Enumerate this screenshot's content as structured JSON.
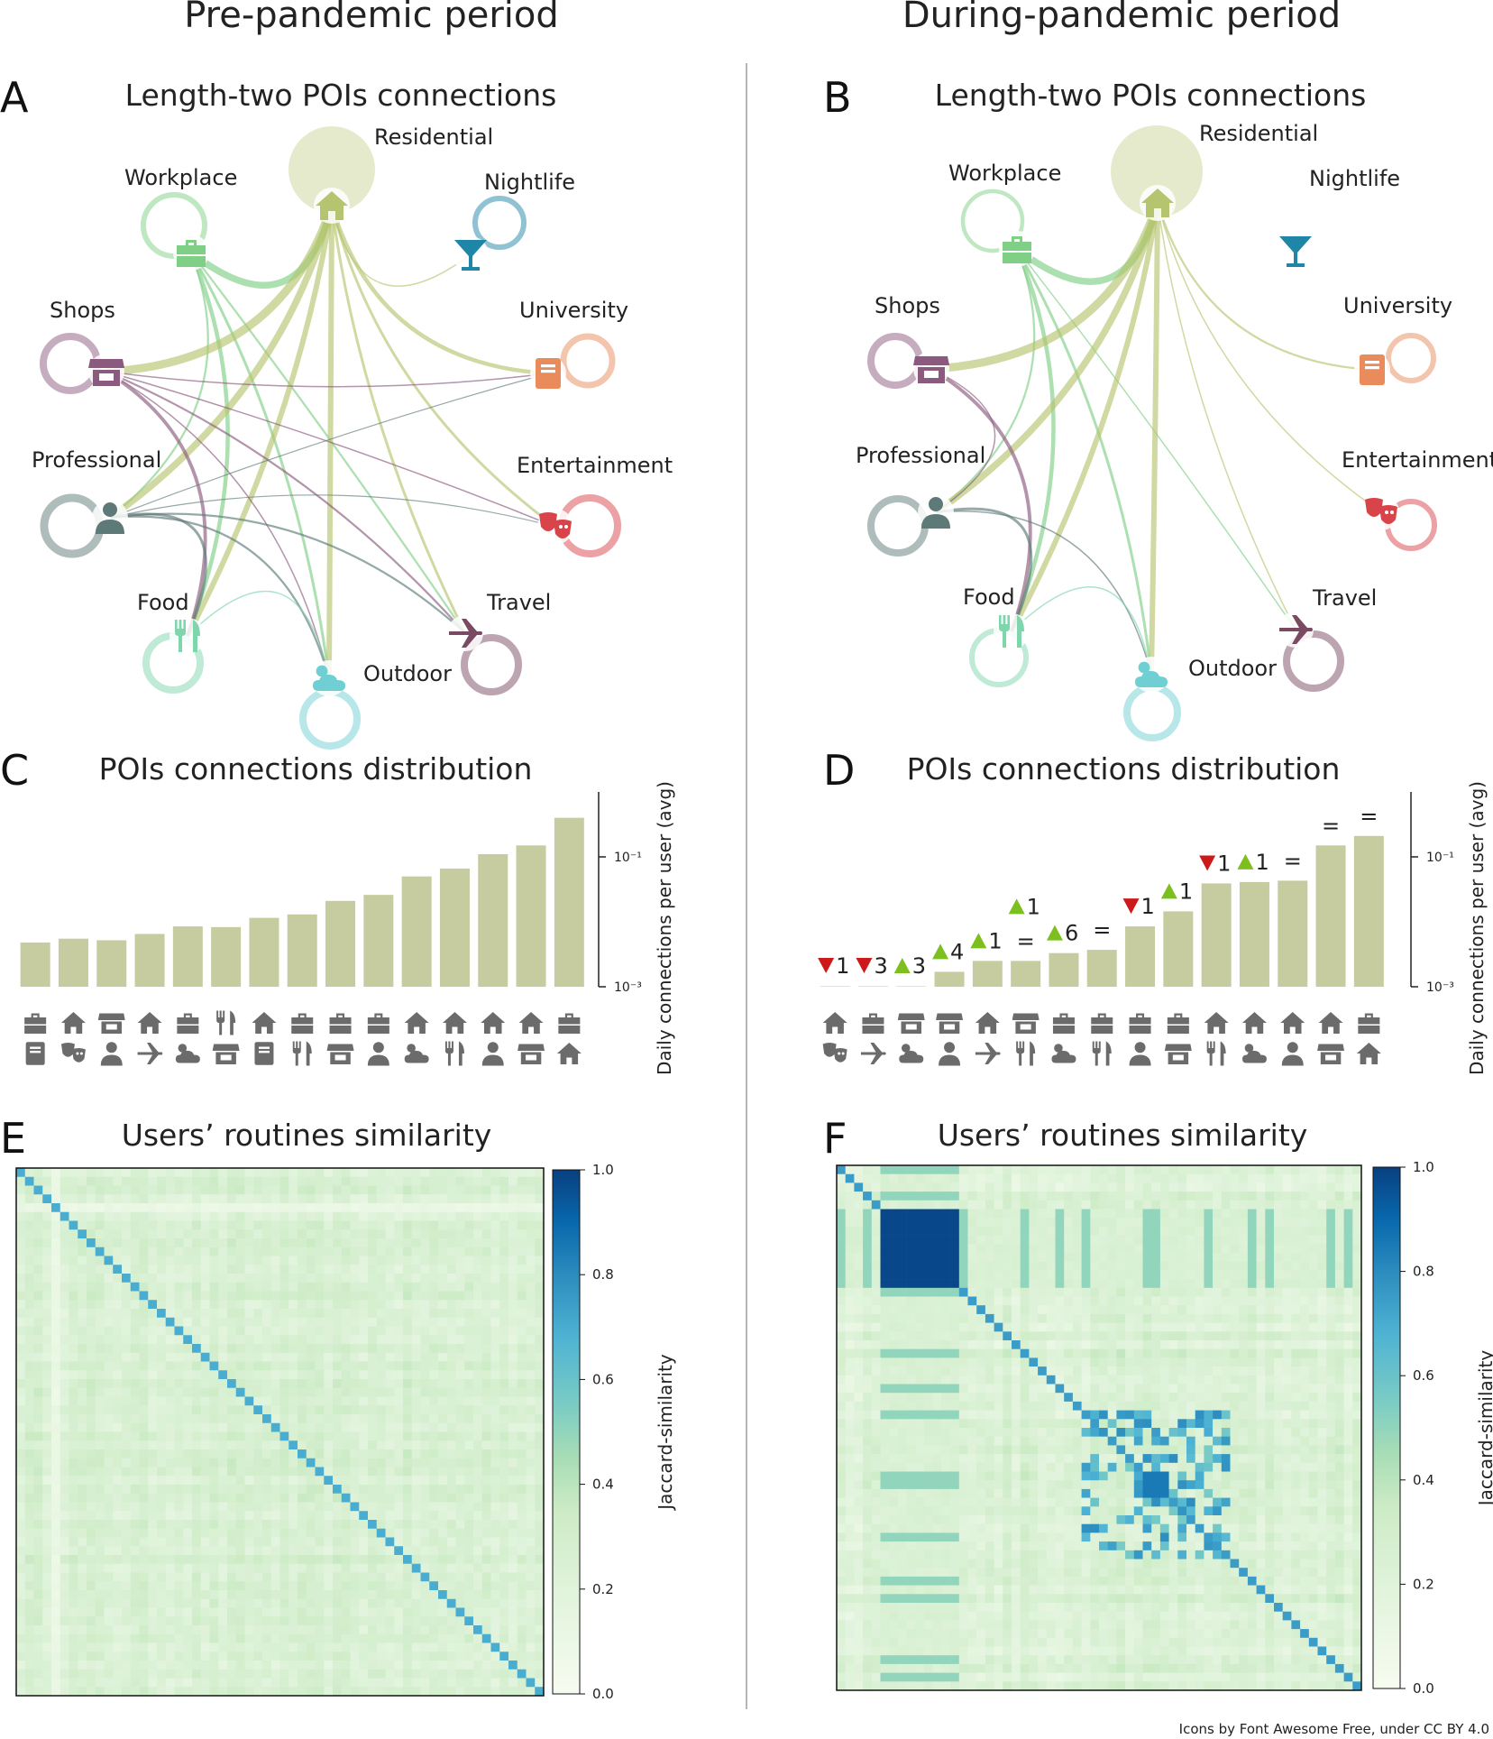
{
  "periods": {
    "pre": "Pre-pandemic period",
    "during": "During-pandemic period"
  },
  "panels": {
    "A": {
      "letter": "A",
      "title": "Length-two POIs connections"
    },
    "B": {
      "letter": "B",
      "title": "Length-two POIs connections"
    },
    "C": {
      "letter": "C",
      "title": "POIs connections distribution"
    },
    "D": {
      "letter": "D",
      "title": "POIs connections distribution"
    },
    "E": {
      "letter": "E",
      "title": "Users’ routines similarity"
    },
    "F": {
      "letter": "F",
      "title": "Users’ routines similarity"
    }
  },
  "poi_categories": [
    {
      "name": "Residential",
      "color": "#b5c46e",
      "icon": "home-icon"
    },
    {
      "name": "Nightlife",
      "color": "#1f86a8",
      "icon": "cocktail-icon"
    },
    {
      "name": "University",
      "color": "#ea8b5c",
      "icon": "book-icon"
    },
    {
      "name": "Entertainment",
      "color": "#d9434a",
      "icon": "theater-masks-icon"
    },
    {
      "name": "Travel",
      "color": "#7a4a63",
      "icon": "plane-icon"
    },
    {
      "name": "Outdoor",
      "color": "#6fcfd3",
      "icon": "cloud-sun-icon"
    },
    {
      "name": "Food",
      "color": "#7fd6ad",
      "icon": "utensils-icon"
    },
    {
      "name": "Professional",
      "color": "#5e7a78",
      "icon": "user-tie-icon"
    },
    {
      "name": "Shops",
      "color": "#8c5a7e",
      "icon": "store-icon"
    },
    {
      "name": "Workplace",
      "color": "#7fcf86",
      "icon": "briefcase-icon"
    }
  ],
  "icon_color": "#6b6b6b",
  "bar_color": "#c6cc9f",
  "up_color": "#7cbf1f",
  "down_color": "#cc1a1a",
  "chart_data": [
    {
      "panel": "A",
      "type": "network",
      "title": "Length-two POIs connections",
      "edges": [
        {
          "from": "Workplace",
          "to": "Residential",
          "weight": 5
        },
        {
          "from": "Workplace",
          "to": "Food",
          "weight": 3
        },
        {
          "from": "Workplace",
          "to": "Outdoor",
          "weight": 2
        },
        {
          "from": "Workplace",
          "to": "Travel",
          "weight": 1.5
        },
        {
          "from": "Workplace",
          "to": "Professional",
          "weight": 1.5
        },
        {
          "from": "Residential",
          "to": "Shops",
          "weight": 6
        },
        {
          "from": "Residential",
          "to": "Professional",
          "weight": 5
        },
        {
          "from": "Residential",
          "to": "Food",
          "weight": 4
        },
        {
          "from": "Residential",
          "to": "Outdoor",
          "weight": 4
        },
        {
          "from": "Residential",
          "to": "University",
          "weight": 3
        },
        {
          "from": "Residential",
          "to": "Entertainment",
          "weight": 2
        },
        {
          "from": "Residential",
          "to": "Travel",
          "weight": 2
        },
        {
          "from": "Residential",
          "to": "Nightlife",
          "weight": 1
        },
        {
          "from": "Shops",
          "to": "University",
          "weight": 1
        },
        {
          "from": "Shops",
          "to": "Entertainment",
          "weight": 1
        },
        {
          "from": "Shops",
          "to": "Travel",
          "weight": 1.5
        },
        {
          "from": "Shops",
          "to": "Outdoor",
          "weight": 1
        },
        {
          "from": "Shops",
          "to": "Food",
          "weight": 2.5
        },
        {
          "from": "Professional",
          "to": "University",
          "weight": 0.8
        },
        {
          "from": "Professional",
          "to": "Entertainment",
          "weight": 0.8
        },
        {
          "from": "Professional",
          "to": "Travel",
          "weight": 1.5
        },
        {
          "from": "Professional",
          "to": "Outdoor",
          "weight": 1.5
        },
        {
          "from": "Professional",
          "to": "Food",
          "weight": 2
        },
        {
          "from": "Food",
          "to": "Outdoor",
          "weight": 1
        }
      ]
    },
    {
      "panel": "B",
      "type": "network",
      "title": "Length-two POIs connections",
      "edges": [
        {
          "from": "Workplace",
          "to": "Residential",
          "weight": 5
        },
        {
          "from": "Workplace",
          "to": "Food",
          "weight": 3
        },
        {
          "from": "Workplace",
          "to": "Outdoor",
          "weight": 2
        },
        {
          "from": "Workplace",
          "to": "Travel",
          "weight": 1
        },
        {
          "from": "Workplace",
          "to": "Professional",
          "weight": 1.5
        },
        {
          "from": "Residential",
          "to": "Shops",
          "weight": 6
        },
        {
          "from": "Residential",
          "to": "Professional",
          "weight": 5
        },
        {
          "from": "Residential",
          "to": "Food",
          "weight": 4
        },
        {
          "from": "Residential",
          "to": "Outdoor",
          "weight": 4
        },
        {
          "from": "Residential",
          "to": "University",
          "weight": 1.5
        },
        {
          "from": "Residential",
          "to": "Entertainment",
          "weight": 1
        },
        {
          "from": "Residential",
          "to": "Travel",
          "weight": 1
        },
        {
          "from": "Shops",
          "to": "Food",
          "weight": 2.5
        },
        {
          "from": "Shops",
          "to": "Professional",
          "weight": 1
        },
        {
          "from": "Professional",
          "to": "Food",
          "weight": 2
        },
        {
          "from": "Professional",
          "to": "Outdoor",
          "weight": 1
        },
        {
          "from": "Food",
          "to": "Outdoor",
          "weight": 1
        }
      ]
    },
    {
      "panel": "C",
      "type": "bar",
      "title": "POIs connections distribution",
      "ylabel": "Daily connections per user (avg)",
      "yscale": "log",
      "ylim": [
        0.001,
        1
      ],
      "yticks": [
        {
          "value": 0.1,
          "label": "10⁻¹"
        },
        {
          "value": 0.001,
          "label": "10⁻³"
        }
      ],
      "categories": [
        [
          "briefcase-icon",
          "book-icon"
        ],
        [
          "home-icon",
          "theater-masks-icon"
        ],
        [
          "store-icon",
          "user-tie-icon"
        ],
        [
          "home-icon",
          "plane-icon"
        ],
        [
          "briefcase-icon",
          "cloud-sun-icon"
        ],
        [
          "utensils-icon",
          "store-icon"
        ],
        [
          "home-icon",
          "book-icon"
        ],
        [
          "briefcase-icon",
          "utensils-icon"
        ],
        [
          "briefcase-icon",
          "store-icon"
        ],
        [
          "briefcase-icon",
          "user-tie-icon"
        ],
        [
          "home-icon",
          "cloud-sun-icon"
        ],
        [
          "home-icon",
          "utensils-icon"
        ],
        [
          "home-icon",
          "user-tie-icon"
        ],
        [
          "home-icon",
          "store-icon"
        ],
        [
          "briefcase-icon",
          "home-icon"
        ]
      ],
      "values": [
        0.0048,
        0.0055,
        0.0052,
        0.0065,
        0.0085,
        0.0083,
        0.0115,
        0.013,
        0.021,
        0.026,
        0.05,
        0.066,
        0.11,
        0.15,
        0.4
      ]
    },
    {
      "panel": "D",
      "type": "bar",
      "title": "POIs connections distribution",
      "ylabel": "Daily connections per user (avg)",
      "yscale": "log",
      "ylim": [
        0.001,
        1
      ],
      "yticks": [
        {
          "value": 0.1,
          "label": "10⁻¹"
        },
        {
          "value": 0.001,
          "label": "10⁻³"
        }
      ],
      "categories": [
        [
          "home-icon",
          "theater-masks-icon"
        ],
        [
          "briefcase-icon",
          "plane-icon"
        ],
        [
          "store-icon",
          "cloud-sun-icon"
        ],
        [
          "store-icon",
          "user-tie-icon"
        ],
        [
          "home-icon",
          "plane-icon"
        ],
        [
          "store-icon",
          "utensils-icon"
        ],
        [
          "briefcase-icon",
          "cloud-sun-icon"
        ],
        [
          "briefcase-icon",
          "utensils-icon"
        ],
        [
          "briefcase-icon",
          "user-tie-icon"
        ],
        [
          "briefcase-icon",
          "store-icon"
        ],
        [
          "home-icon",
          "utensils-icon"
        ],
        [
          "home-icon",
          "cloud-sun-icon"
        ],
        [
          "home-icon",
          "user-tie-icon"
        ],
        [
          "home-icon",
          "store-icon"
        ],
        [
          "briefcase-icon",
          "home-icon"
        ]
      ],
      "values": [
        0.0008,
        0.0008,
        0.0008,
        0.0017,
        0.0025,
        0.0025,
        0.0033,
        0.0037,
        0.0085,
        0.0145,
        0.039,
        0.041,
        0.043,
        0.15,
        0.21
      ],
      "rank_changes": [
        {
          "dir": "down",
          "n": "1"
        },
        {
          "dir": "down",
          "n": "3"
        },
        {
          "dir": "up",
          "n": "3"
        },
        {
          "dir": "up",
          "n": "4"
        },
        {
          "dir": "up",
          "n": "1"
        },
        {
          "dir": "eq",
          "n": "="
        },
        {
          "dir": "up",
          "n": "6"
        },
        {
          "dir": "eq",
          "n": "="
        },
        {
          "dir": "down",
          "n": "1"
        },
        {
          "dir": "up",
          "n": "1"
        },
        {
          "dir": "down",
          "n": "1"
        },
        {
          "dir": "up",
          "n": "1"
        },
        {
          "dir": "eq",
          "n": "="
        },
        {
          "dir": "eq",
          "n": "="
        },
        {
          "dir": "eq",
          "n": "="
        }
      ],
      "extra_label": {
        "after_bar": 5,
        "dir": "up",
        "n": "1"
      }
    },
    {
      "panel": "E",
      "type": "heatmap",
      "title": "Users’ routines similarity",
      "colorbar_label": "Jaccard-similarity",
      "colorbar_ticks": [
        "0.0",
        "0.2",
        "0.4",
        "0.6",
        "0.8",
        "1.0"
      ],
      "value_range": [
        0,
        1
      ]
    },
    {
      "panel": "F",
      "type": "heatmap",
      "title": "Users’ routines similarity",
      "colorbar_label": "Jaccard-similarity",
      "colorbar_ticks": [
        "0.0",
        "0.2",
        "0.4",
        "0.6",
        "0.8",
        "1.0"
      ],
      "value_range": [
        0,
        1
      ]
    }
  ],
  "credit": "Icons by Font Awesome Free, under CC BY 4.0"
}
